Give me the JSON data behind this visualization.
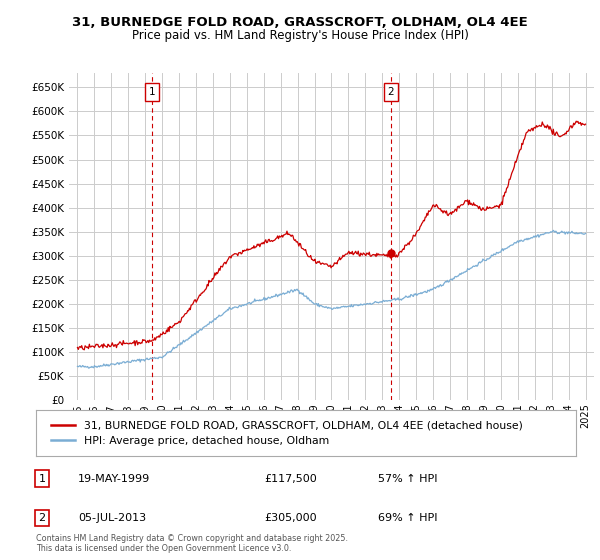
{
  "title_line1": "31, BURNEDGE FOLD ROAD, GRASSCROFT, OLDHAM, OL4 4EE",
  "title_line2": "Price paid vs. HM Land Registry's House Price Index (HPI)",
  "legend_line1": "31, BURNEDGE FOLD ROAD, GRASSCROFT, OLDHAM, OL4 4EE (detached house)",
  "legend_line2": "HPI: Average price, detached house, Oldham",
  "annotation1_label": "1",
  "annotation1_date": "19-MAY-1999",
  "annotation1_price": "£117,500",
  "annotation1_hpi": "57% ↑ HPI",
  "annotation1_year": 1999.38,
  "annotation1_value": 117500,
  "annotation2_label": "2",
  "annotation2_date": "05-JUL-2013",
  "annotation2_price": "£305,000",
  "annotation2_hpi": "69% ↑ HPI",
  "annotation2_year": 2013.5,
  "annotation2_value": 305000,
  "red_color": "#cc0000",
  "blue_color": "#7aadd4",
  "background_color": "#ffffff",
  "grid_color": "#cccccc",
  "footer_text": "Contains HM Land Registry data © Crown copyright and database right 2025.\nThis data is licensed under the Open Government Licence v3.0.",
  "ylim_min": 0,
  "ylim_max": 680000,
  "xmin": 1994.5,
  "xmax": 2025.5
}
